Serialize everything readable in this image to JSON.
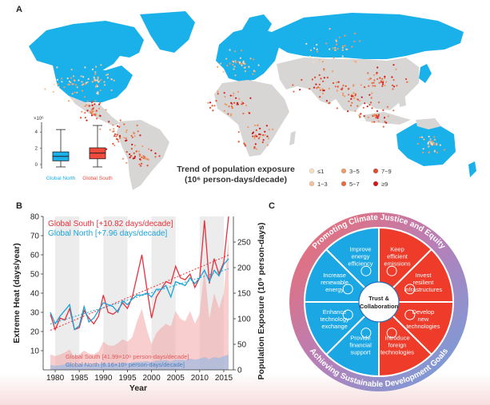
{
  "panels": {
    "a": "A",
    "b": "B",
    "c": "C"
  },
  "map": {
    "legend_title_line1": "Trend of population exposure",
    "legend_title_line2": "(10⁶ person-days/decade)",
    "legend_items": [
      {
        "label": "≤1",
        "color": "#f6dcc0"
      },
      {
        "label": "1~3",
        "color": "#f2c09a"
      },
      {
        "label": "3~5",
        "color": "#ee9a68"
      },
      {
        "label": "5~7",
        "color": "#e86a40"
      },
      {
        "label": "7~9",
        "color": "#e04a2a"
      },
      {
        "label": "≥9",
        "color": "#d01818"
      }
    ],
    "ocean_color": "#ffffff",
    "north_color": "#1ab0ea",
    "south_color": "#d8d5d5"
  },
  "boxplot": {
    "scale_label": "×10⁶",
    "y_ticks": [
      "0",
      "2",
      "4"
    ],
    "y_range": [
      -0.5,
      5.2
    ],
    "groups": [
      {
        "label": "Global North",
        "color": "#1ab0ea",
        "min": -0.3,
        "q1": 0.45,
        "median": 1.0,
        "q3": 1.55,
        "max": 4.3
      },
      {
        "label": "Global South",
        "color": "#ef4a3c",
        "min": -0.3,
        "q1": 0.7,
        "median": 1.4,
        "q3": 2.05,
        "max": 4.8
      }
    ]
  },
  "chart_data": {
    "type": "line",
    "x": [
      1979,
      1980,
      1981,
      1982,
      1983,
      1984,
      1985,
      1986,
      1987,
      1988,
      1989,
      1990,
      1991,
      1992,
      1993,
      1994,
      1995,
      1996,
      1997,
      1998,
      1999,
      2000,
      2001,
      2002,
      2003,
      2004,
      2005,
      2006,
      2007,
      2008,
      2009,
      2010,
      2011,
      2012,
      2013,
      2014,
      2015,
      2016
    ],
    "xlim": [
      1977.5,
      2017
    ],
    "x_ticks": [
      "1980",
      "1985",
      "1990",
      "1995",
      "2000",
      "2005",
      "2010",
      "2015"
    ],
    "xlabel": "Year",
    "ylabel": "Extreme Heat (days/year)",
    "ylim": [
      0,
      80
    ],
    "y_ticks": [
      "10",
      "20",
      "30",
      "40",
      "50",
      "60",
      "70",
      "80"
    ],
    "y2label": "Population Exposure (10⁹ person-days)",
    "y2lim": [
      0,
      300
    ],
    "y2_ticks": [
      "0",
      "50",
      "100",
      "150",
      "200",
      "250"
    ],
    "shaded_years": [
      [
        1980,
        1985
      ],
      [
        1990,
        1995
      ],
      [
        2000,
        2005
      ],
      [
        2010,
        2015
      ]
    ],
    "series": [
      {
        "name": "Global South [+10.82 days/decade]",
        "color": "#e8303a",
        "values": [
          29,
          21,
          27,
          26,
          32,
          21,
          22,
          31,
          27,
          24,
          28,
          39,
          30,
          29,
          31,
          35,
          32,
          38,
          49,
          60,
          43,
          27,
          38,
          42,
          46,
          45,
          54,
          48,
          47,
          50,
          43,
          48,
          78,
          45,
          58,
          50,
          56,
          80
        ]
      },
      {
        "name": "Global North [+7.96 days/decade]",
        "color": "#1ba3d8",
        "values": [
          30,
          24,
          28,
          31,
          34,
          21,
          23,
          33,
          25,
          27,
          31,
          35,
          34,
          33,
          30,
          36,
          34,
          37,
          39,
          39,
          40,
          38,
          42,
          42,
          44,
          38,
          46,
          45,
          44,
          48,
          45,
          48,
          52,
          46,
          52,
          49,
          55,
          58
        ]
      }
    ],
    "exposure_series": [
      {
        "name": "Global South [41.99×10⁹ person-days/decade]",
        "color": "#f4a6a6",
        "values": [
          30,
          27,
          30,
          34,
          40,
          25,
          30,
          38,
          32,
          30,
          36,
          55,
          48,
          47,
          52,
          60,
          55,
          64,
          95,
          120,
          80,
          50,
          72,
          82,
          90,
          85,
          115,
          100,
          95,
          115,
          90,
          110,
          200,
          100,
          150,
          120,
          150,
          260
        ]
      },
      {
        "name": "Global North [6.16×10⁹ person-days/decade]",
        "color": "#8fb8e6",
        "values": [
          10,
          8,
          9,
          11,
          13,
          7,
          9,
          12,
          9,
          9,
          11,
          13,
          12,
          12,
          11,
          14,
          13,
          15,
          16,
          16,
          17,
          15,
          18,
          18,
          19,
          16,
          20,
          20,
          19,
          22,
          20,
          22,
          25,
          21,
          25,
          23,
          27,
          30
        ]
      }
    ]
  },
  "wheel": {
    "ring_top": "Promoting Climate Justice and Equity",
    "ring_bottom": "Achieving Sustainable Development Goals",
    "center_line1": "Trust &",
    "center_line2": "Collaboration",
    "left_color": "#1ba7e3",
    "right_color": "#ee3b2a",
    "segments": [
      {
        "lines": [
          "Keep",
          "efficient",
          "emissions"
        ],
        "side": "right",
        "icon": "factory-icon"
      },
      {
        "lines": [
          "Invest",
          "resilient",
          "infrastructures"
        ],
        "side": "right",
        "icon": "buildings-icon"
      },
      {
        "lines": [
          "Develop",
          "new",
          "technologies"
        ],
        "side": "right",
        "icon": "lightbulb-icon"
      },
      {
        "lines": [
          "Introduce",
          "foreign",
          "technologies"
        ],
        "side": "right",
        "icon": "network-icon"
      },
      {
        "lines": [
          "Provide",
          "financial",
          "support"
        ],
        "side": "left",
        "icon": "coin-icon"
      },
      {
        "lines": [
          "Enhance",
          "technology",
          "exchange"
        ],
        "side": "left",
        "icon": "gears-icon"
      },
      {
        "lines": [
          "Increase",
          "renewable",
          "energy"
        ],
        "side": "left",
        "icon": "globe-icon"
      },
      {
        "lines": [
          "Improve",
          "energy",
          "efficiency"
        ],
        "side": "left",
        "icon": "solar-panel-icon"
      }
    ]
  }
}
